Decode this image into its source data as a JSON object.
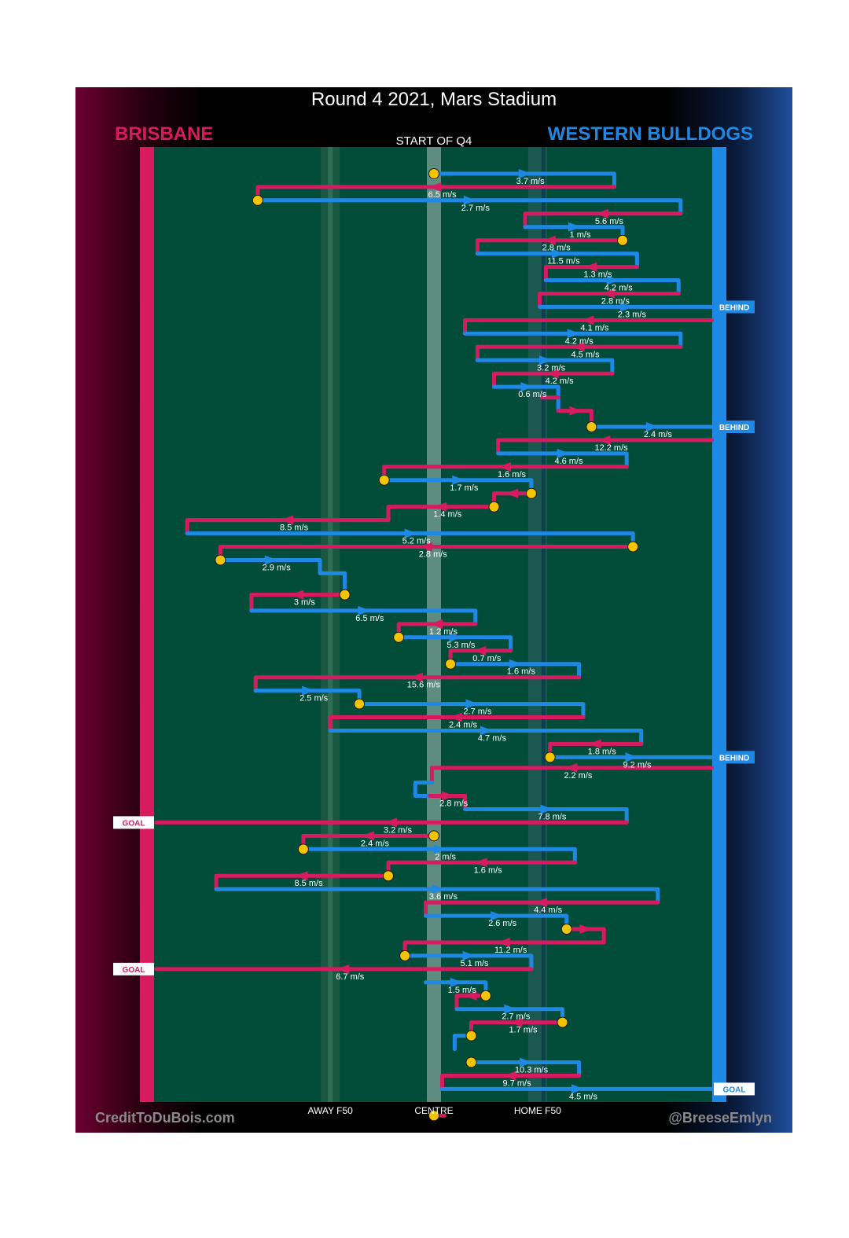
{
  "chart_data": {
    "type": "line",
    "title": "Round 4 2021, Mars Stadium",
    "subtitle": "START OF Q4",
    "teams": {
      "left": "BRISBANE",
      "right": "WESTERN BULLDOGS"
    },
    "colors": {
      "brisbane": "#d81b60",
      "bulldogs": "#1e88e5",
      "ground": "#024d3a",
      "marker": "#f5c400"
    },
    "x_axis": {
      "labels": [
        "AWAY F50",
        "CENTRE",
        "HOME F50"
      ],
      "positions": [
        -0.5,
        0,
        0.5
      ],
      "range": [
        -1.35,
        1.35
      ]
    },
    "footer": {
      "left": "CreditToDuBois.com",
      "right": "@BreeseEmlyn"
    },
    "paths": [
      {
        "pts": [
          [
            0,
            1
          ],
          [
            0.87,
            1
          ],
          [
            0.87,
            2
          ]
        ],
        "c": "b",
        "s": "3.7 m/s",
        "m": 1
      },
      {
        "pts": [
          [
            0.87,
            2
          ],
          [
            -0.85,
            2
          ],
          [
            -0.85,
            3
          ]
        ],
        "c": "r",
        "s": "6.5 m/s",
        "m": 0
      },
      {
        "pts": [
          [
            -0.85,
            3
          ],
          [
            1.19,
            3
          ],
          [
            1.19,
            4
          ]
        ],
        "c": "b",
        "s": "2.7 m/s",
        "m": 1
      },
      {
        "pts": [
          [
            1.19,
            4
          ],
          [
            0.44,
            4
          ],
          [
            0.44,
            5
          ]
        ],
        "c": "r",
        "s": "5.6 m/s",
        "m": 0
      },
      {
        "pts": [
          [
            0.44,
            5
          ],
          [
            0.91,
            5
          ],
          [
            0.91,
            6
          ]
        ],
        "c": "b",
        "s": "1 m/s",
        "m": 0
      },
      {
        "pts": [
          [
            0.91,
            6
          ],
          [
            0.21,
            6
          ],
          [
            0.21,
            7
          ]
        ],
        "c": "r",
        "s": "2.8 m/s",
        "m": 2
      },
      {
        "pts": [
          [
            0.21,
            7
          ],
          [
            0.98,
            7
          ],
          [
            0.98,
            8
          ]
        ],
        "c": "b",
        "s": "11.5 m/s",
        "m": 0
      },
      {
        "pts": [
          [
            0.98,
            8
          ],
          [
            0.54,
            8
          ],
          [
            0.54,
            9
          ]
        ],
        "c": "r",
        "s": "1.3 m/s",
        "m": 0
      },
      {
        "pts": [
          [
            0.54,
            9
          ],
          [
            1.18,
            9
          ],
          [
            1.18,
            10
          ]
        ],
        "c": "b",
        "s": "4.2 m/s",
        "m": 0
      },
      {
        "pts": [
          [
            1.18,
            10
          ],
          [
            0.51,
            10
          ],
          [
            0.51,
            11
          ]
        ],
        "c": "r",
        "s": "2.8 m/s",
        "m": 0
      },
      {
        "pts": [
          [
            0.51,
            11
          ],
          [
            1.34,
            11
          ]
        ],
        "c": "b",
        "s": "2.3 m/s",
        "m": 0,
        "tag": "BEHIND"
      },
      {
        "pts": [
          [
            1.34,
            12
          ],
          [
            0.15,
            12
          ],
          [
            0.15,
            13
          ]
        ],
        "c": "r",
        "s": "4.1 m/s",
        "m": 0
      },
      {
        "pts": [
          [
            0.15,
            13
          ],
          [
            1.19,
            13
          ],
          [
            1.19,
            14
          ]
        ],
        "c": "b",
        "s": "4.2 m/s",
        "m": 0
      },
      {
        "pts": [
          [
            1.19,
            14
          ],
          [
            0.21,
            14
          ],
          [
            0.21,
            15
          ]
        ],
        "c": "r",
        "s": "4.5 m/s",
        "m": 0
      },
      {
        "pts": [
          [
            0.21,
            15
          ],
          [
            0.86,
            15
          ],
          [
            0.86,
            16
          ]
        ],
        "c": "b",
        "s": "3.2 m/s",
        "m": 0
      },
      {
        "pts": [
          [
            0.86,
            16
          ],
          [
            0.29,
            16
          ],
          [
            0.29,
            17
          ]
        ],
        "c": "r",
        "s": "4.2 m/s",
        "m": 0
      },
      {
        "pts": [
          [
            0.29,
            17
          ],
          [
            0.6,
            17
          ],
          [
            0.6,
            18.8
          ]
        ],
        "c": "b",
        "s": "0.6 m/s",
        "m": 0
      },
      {
        "pts": [
          [
            0.6,
            17.8
          ],
          [
            0.52,
            17.8
          ]
        ],
        "c": "r",
        "s": "",
        "m": 0
      },
      {
        "pts": [
          [
            0.6,
            18.8
          ],
          [
            0.76,
            18.8
          ],
          [
            0.76,
            20
          ]
        ],
        "c": "r",
        "s": "",
        "m": 0
      },
      {
        "pts": [
          [
            0.76,
            20
          ],
          [
            1.34,
            20
          ]
        ],
        "c": "b",
        "s": "2.4 m/s",
        "m": 1,
        "tag": "BEHIND"
      },
      {
        "pts": [
          [
            1.34,
            21
          ],
          [
            0.31,
            21
          ],
          [
            0.31,
            22
          ]
        ],
        "c": "r",
        "s": "12.2 m/s",
        "m": 0
      },
      {
        "pts": [
          [
            0.31,
            22
          ],
          [
            0.93,
            22
          ],
          [
            0.93,
            23
          ]
        ],
        "c": "b",
        "s": "4.6 m/s",
        "m": 0
      },
      {
        "pts": [
          [
            0.93,
            23
          ],
          [
            -0.24,
            23
          ],
          [
            -0.24,
            24
          ]
        ],
        "c": "r",
        "s": "1.6 m/s",
        "m": 0
      },
      {
        "pts": [
          [
            -0.24,
            24
          ],
          [
            0.47,
            24
          ],
          [
            0.47,
            25
          ]
        ],
        "c": "b",
        "s": "1.7 m/s",
        "m": 2
      },
      {
        "pts": [
          [
            0.47,
            25
          ],
          [
            0.29,
            25
          ],
          [
            0.29,
            26
          ]
        ],
        "c": "r",
        "s": "",
        "m": 2
      },
      {
        "pts": [
          [
            0.29,
            26
          ],
          [
            -0.22,
            26
          ],
          [
            -0.22,
            27
          ]
        ],
        "c": "r",
        "s": "1.4 m/s",
        "m": 2
      },
      {
        "pts": [
          [
            -0.22,
            27
          ],
          [
            -1.19,
            27
          ],
          [
            -1.19,
            28
          ]
        ],
        "c": "r",
        "s": "8.5 m/s",
        "m": 0
      },
      {
        "pts": [
          [
            -1.19,
            28
          ],
          [
            0.96,
            28
          ],
          [
            0.96,
            29
          ]
        ],
        "c": "b",
        "s": "5.2 m/s",
        "m": 0
      },
      {
        "pts": [
          [
            0.96,
            29
          ],
          [
            -1.03,
            29
          ],
          [
            -1.03,
            30
          ]
        ],
        "c": "r",
        "s": "2.8 m/s",
        "m": 1
      },
      {
        "pts": [
          [
            -1.03,
            30
          ],
          [
            -0.55,
            30
          ],
          [
            -0.55,
            31
          ],
          [
            -0.43,
            31
          ],
          [
            -0.43,
            32.2
          ]
        ],
        "c": "b",
        "s": "2.9 m/s",
        "m": 1
      },
      {
        "pts": [
          [
            -0.43,
            32.6
          ],
          [
            -0.88,
            32.6
          ],
          [
            -0.88,
            33.8
          ]
        ],
        "c": "r",
        "s": "3 m/s",
        "m": 2
      },
      {
        "pts": [
          [
            -0.88,
            33.8
          ],
          [
            0.2,
            33.8
          ],
          [
            0.2,
            34.8
          ]
        ],
        "c": "b",
        "s": "6.5 m/s",
        "m": 0
      },
      {
        "pts": [
          [
            0.2,
            34.8
          ],
          [
            -0.17,
            34.8
          ],
          [
            -0.17,
            35.8
          ]
        ],
        "c": "r",
        "s": "1.2 m/s",
        "m": 0
      },
      {
        "pts": [
          [
            -0.17,
            35.8
          ],
          [
            0.37,
            35.8
          ],
          [
            0.37,
            36.8
          ]
        ],
        "c": "b",
        "s": "5.3 m/s",
        "m": 1
      },
      {
        "pts": [
          [
            0.37,
            36.8
          ],
          [
            0.08,
            36.8
          ],
          [
            0.08,
            37.8
          ]
        ],
        "c": "r",
        "s": "0.7 m/s",
        "m": 0
      },
      {
        "pts": [
          [
            0.08,
            37.8
          ],
          [
            0.7,
            37.8
          ],
          [
            0.7,
            38.8
          ]
        ],
        "c": "b",
        "s": "1.6 m/s",
        "m": 1
      },
      {
        "pts": [
          [
            0.7,
            38.8
          ],
          [
            -0.86,
            38.8
          ],
          [
            -0.86,
            39.8
          ]
        ],
        "c": "r",
        "s": "15.6 m/s",
        "m": 0
      },
      {
        "pts": [
          [
            -0.86,
            39.8
          ],
          [
            -0.36,
            39.8
          ],
          [
            -0.36,
            40.8
          ]
        ],
        "c": "b",
        "s": "2.5 m/s",
        "m": 0
      },
      {
        "pts": [
          [
            -0.36,
            40.8
          ],
          [
            0.72,
            40.8
          ],
          [
            0.72,
            41.8
          ]
        ],
        "c": "b",
        "s": "2.7 m/s",
        "m": 1
      },
      {
        "pts": [
          [
            0.72,
            41.8
          ],
          [
            -0.5,
            41.8
          ],
          [
            -0.5,
            42.8
          ]
        ],
        "c": "r",
        "s": "2.4 m/s",
        "m": 0
      },
      {
        "pts": [
          [
            -0.5,
            42.8
          ],
          [
            1.0,
            42.8
          ],
          [
            1.0,
            43.8
          ]
        ],
        "c": "b",
        "s": "4.7 m/s",
        "m": 0
      },
      {
        "pts": [
          [
            1.0,
            43.8
          ],
          [
            0.56,
            43.8
          ],
          [
            0.56,
            44.8
          ]
        ],
        "c": "r",
        "s": "1.8 m/s",
        "m": 0
      },
      {
        "pts": [
          [
            0.56,
            44.8
          ],
          [
            1.34,
            44.8
          ]
        ],
        "c": "b",
        "s": "9.2 m/s",
        "m": 1,
        "tag": "BEHIND"
      },
      {
        "pts": [
          [
            1.34,
            45.6
          ],
          [
            -0.01,
            45.6
          ],
          [
            -0.01,
            46.7
          ]
        ],
        "c": "r",
        "s": "2.2 m/s",
        "m": 0
      },
      {
        "pts": [
          [
            -0.01,
            46.7
          ],
          [
            -0.09,
            46.7
          ],
          [
            -0.09,
            47.7
          ],
          [
            -0.02,
            47.7
          ]
        ],
        "c": "b",
        "s": "",
        "m": 0
      },
      {
        "pts": [
          [
            -0.02,
            47.7
          ],
          [
            0.15,
            47.7
          ],
          [
            0.15,
            48.7
          ]
        ],
        "c": "r",
        "s": "2.8 m/s",
        "m": 0
      },
      {
        "pts": [
          [
            0.15,
            48.7
          ],
          [
            0.93,
            48.7
          ],
          [
            0.93,
            49.7
          ]
        ],
        "c": "b",
        "s": "7.8 m/s",
        "m": 0
      },
      {
        "pts": [
          [
            0.93,
            49.7
          ],
          [
            -1.34,
            49.7
          ]
        ],
        "c": "r",
        "s": "3.2 m/s",
        "m": 0,
        "tag": "GOAL"
      },
      {
        "pts": [
          [
            0,
            50.7
          ],
          [
            -0.63,
            50.7
          ],
          [
            -0.63,
            51.7
          ]
        ],
        "c": "r",
        "s": "2.4 m/s",
        "m": 1
      },
      {
        "pts": [
          [
            -0.63,
            51.7
          ],
          [
            0.68,
            51.7
          ],
          [
            0.68,
            52.7
          ]
        ],
        "c": "b",
        "s": "2 m/s",
        "m": 1
      },
      {
        "pts": [
          [
            0.68,
            52.7
          ],
          [
            -0.22,
            52.7
          ],
          [
            -0.22,
            53.7
          ]
        ],
        "c": "r",
        "s": "1.6 m/s",
        "m": 0
      },
      {
        "pts": [
          [
            -0.22,
            53.7
          ],
          [
            -1.05,
            53.7
          ],
          [
            -1.05,
            54.7
          ]
        ],
        "c": "r",
        "s": "8.5 m/s",
        "m": 2
      },
      {
        "pts": [
          [
            -1.05,
            54.7
          ],
          [
            1.08,
            54.7
          ],
          [
            1.08,
            55.7
          ]
        ],
        "c": "b",
        "s": "3.6 m/s",
        "m": 0
      },
      {
        "pts": [
          [
            1.08,
            55.7
          ],
          [
            -0.04,
            55.7
          ],
          [
            -0.04,
            56.7
          ]
        ],
        "c": "r",
        "s": "4.4 m/s",
        "m": 0
      },
      {
        "pts": [
          [
            -0.04,
            56.7
          ],
          [
            0.64,
            56.7
          ],
          [
            0.64,
            57.7
          ]
        ],
        "c": "b",
        "s": "2.6 m/s",
        "m": 0
      },
      {
        "pts": [
          [
            0.64,
            57.7
          ],
          [
            0.82,
            57.7
          ],
          [
            0.82,
            58.7
          ]
        ],
        "c": "r",
        "s": "",
        "m": 2
      },
      {
        "pts": [
          [
            0.82,
            58.7
          ],
          [
            -0.14,
            58.7
          ],
          [
            -0.14,
            59.7
          ]
        ],
        "c": "r",
        "s": "11.2 m/s",
        "m": 0
      },
      {
        "pts": [
          [
            -0.14,
            59.7
          ],
          [
            0.47,
            59.7
          ],
          [
            0.47,
            60.7
          ]
        ],
        "c": "b",
        "s": "5.1 m/s",
        "m": 2
      },
      {
        "pts": [
          [
            0.47,
            60.7
          ],
          [
            -1.34,
            60.7
          ]
        ],
        "c": "r",
        "s": "6.7 m/s",
        "m": 0,
        "tag": "GOAL"
      },
      {
        "pts": [
          [
            -0.04,
            61.7
          ],
          [
            0.25,
            61.7
          ],
          [
            0.25,
            62.7
          ]
        ],
        "c": "b",
        "s": "1.5 m/s",
        "m": 0
      },
      {
        "pts": [
          [
            0.25,
            62.7
          ],
          [
            0.11,
            62.7
          ],
          [
            0.11,
            63.7
          ]
        ],
        "c": "r",
        "s": "",
        "m": 2
      },
      {
        "pts": [
          [
            0.11,
            63.7
          ],
          [
            0.62,
            63.7
          ],
          [
            0.62,
            64.7
          ]
        ],
        "c": "b",
        "s": "2.7 m/s",
        "m": 0
      },
      {
        "pts": [
          [
            0.62,
            64.7
          ],
          [
            0.18,
            64.7
          ],
          [
            0.18,
            65.7
          ]
        ],
        "c": "r",
        "s": "1.7 m/s",
        "m": 2
      },
      {
        "pts": [
          [
            0.18,
            65.7
          ],
          [
            0.1,
            65.7
          ],
          [
            0.1,
            66.7
          ]
        ],
        "c": "b",
        "s": "",
        "m": 1
      },
      {
        "pts": [
          [
            0.18,
            67.7
          ],
          [
            0.7,
            67.7
          ],
          [
            0.7,
            68.7
          ]
        ],
        "c": "b",
        "s": "10.3 m/s",
        "m": 1
      },
      {
        "pts": [
          [
            0.7,
            68.7
          ],
          [
            0.04,
            68.7
          ],
          [
            0.04,
            69.7
          ]
        ],
        "c": "r",
        "s": "9.7 m/s",
        "m": 0
      },
      {
        "pts": [
          [
            0.04,
            69.7
          ],
          [
            1.34,
            69.7
          ]
        ],
        "c": "b",
        "s": "4.5 m/s",
        "m": 0,
        "tag": "GOAL"
      },
      {
        "pts": [
          [
            0,
            71.7
          ],
          [
            0.05,
            71.7
          ]
        ],
        "c": "r",
        "s": "",
        "m": 1
      }
    ]
  }
}
